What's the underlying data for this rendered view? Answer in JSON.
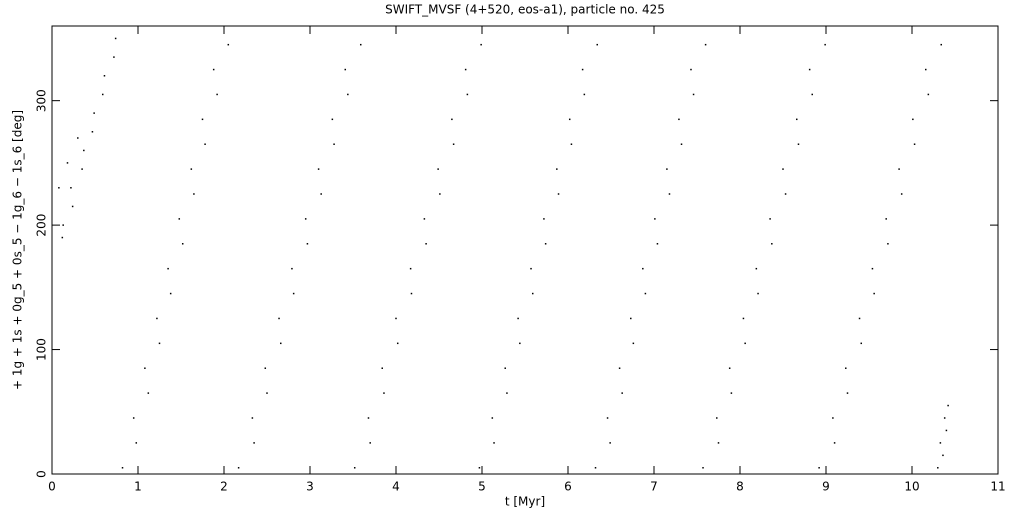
{
  "chart_data": {
    "type": "scatter",
    "title": "SWIFT_MVSF (4+520, eos-a1), particle no. 425",
    "x_label": "t [Myr]",
    "y_label": "+ 1g + 1s + 0g_5 + 0s_5 − 1g_6 − 1s_6 [deg]",
    "color": "#000000",
    "xlim": [
      0,
      11
    ],
    "ylim": [
      0,
      360
    ],
    "xticks": [
      0,
      1,
      2,
      3,
      4,
      5,
      6,
      7,
      8,
      9,
      10,
      11
    ],
    "yticks": [
      0,
      100,
      200,
      300
    ],
    "x": [
      0.12,
      0.13,
      0.24,
      0.22,
      0.35,
      0.37,
      0.47,
      0.49,
      0.59,
      0.61,
      0.72,
      0.74,
      0.08,
      0.18,
      0.3,
      0.82,
      0.98,
      0.95,
      1.12,
      1.08,
      1.25,
      1.22,
      1.38,
      1.35,
      1.52,
      1.48,
      1.65,
      1.62,
      1.78,
      1.75,
      1.92,
      1.88,
      2.05,
      2.17,
      2.35,
      2.33,
      2.5,
      2.48,
      2.66,
      2.64,
      2.81,
      2.79,
      2.97,
      2.95,
      3.13,
      3.1,
      3.28,
      3.26,
      3.44,
      3.41,
      3.59,
      3.52,
      3.7,
      3.68,
      3.86,
      3.84,
      4.02,
      4.0,
      4.18,
      4.17,
      4.35,
      4.33,
      4.51,
      4.49,
      4.67,
      4.65,
      4.83,
      4.81,
      4.99,
      4.97,
      5.14,
      5.12,
      5.29,
      5.27,
      5.44,
      5.42,
      5.59,
      5.57,
      5.74,
      5.72,
      5.89,
      5.87,
      6.04,
      6.02,
      6.19,
      6.17,
      6.34,
      6.32,
      6.49,
      6.46,
      6.63,
      6.6,
      6.76,
      6.73,
      6.9,
      6.87,
      7.04,
      7.01,
      7.18,
      7.15,
      7.32,
      7.29,
      7.46,
      7.43,
      7.6,
      7.57,
      7.75,
      7.73,
      7.9,
      7.88,
      8.06,
      8.04,
      8.21,
      8.19,
      8.37,
      8.35,
      8.53,
      8.5,
      8.68,
      8.66,
      8.84,
      8.81,
      8.99,
      8.92,
      9.1,
      9.08,
      9.25,
      9.23,
      9.41,
      9.39,
      9.56,
      9.54,
      9.72,
      9.7,
      9.88,
      9.85,
      10.03,
      10.01,
      10.19,
      10.16,
      10.34,
      10.3,
      10.36,
      10.33,
      10.4,
      10.38,
      10.42
    ],
    "y": [
      190,
      200,
      215,
      230,
      245,
      260,
      275,
      290,
      305,
      320,
      335,
      350,
      230,
      250,
      270,
      5,
      25,
      45,
      65,
      85,
      105,
      125,
      145,
      165,
      185,
      205,
      225,
      245,
      265,
      285,
      305,
      325,
      345,
      5,
      25,
      45,
      65,
      85,
      105,
      125,
      145,
      165,
      185,
      205,
      225,
      245,
      265,
      285,
      305,
      325,
      345,
      5,
      25,
      45,
      65,
      85,
      105,
      125,
      145,
      165,
      185,
      205,
      225,
      245,
      265,
      285,
      305,
      325,
      345,
      5,
      25,
      45,
      65,
      85,
      105,
      125,
      145,
      165,
      185,
      205,
      225,
      245,
      265,
      285,
      305,
      325,
      345,
      5,
      25,
      45,
      65,
      85,
      105,
      125,
      145,
      165,
      185,
      205,
      225,
      245,
      265,
      285,
      305,
      325,
      345,
      5,
      25,
      45,
      65,
      85,
      105,
      125,
      145,
      165,
      185,
      205,
      225,
      245,
      265,
      285,
      305,
      325,
      345,
      5,
      25,
      45,
      65,
      85,
      105,
      125,
      145,
      165,
      185,
      205,
      225,
      245,
      265,
      285,
      305,
      325,
      345,
      5,
      15,
      25,
      35,
      45,
      55
    ]
  }
}
